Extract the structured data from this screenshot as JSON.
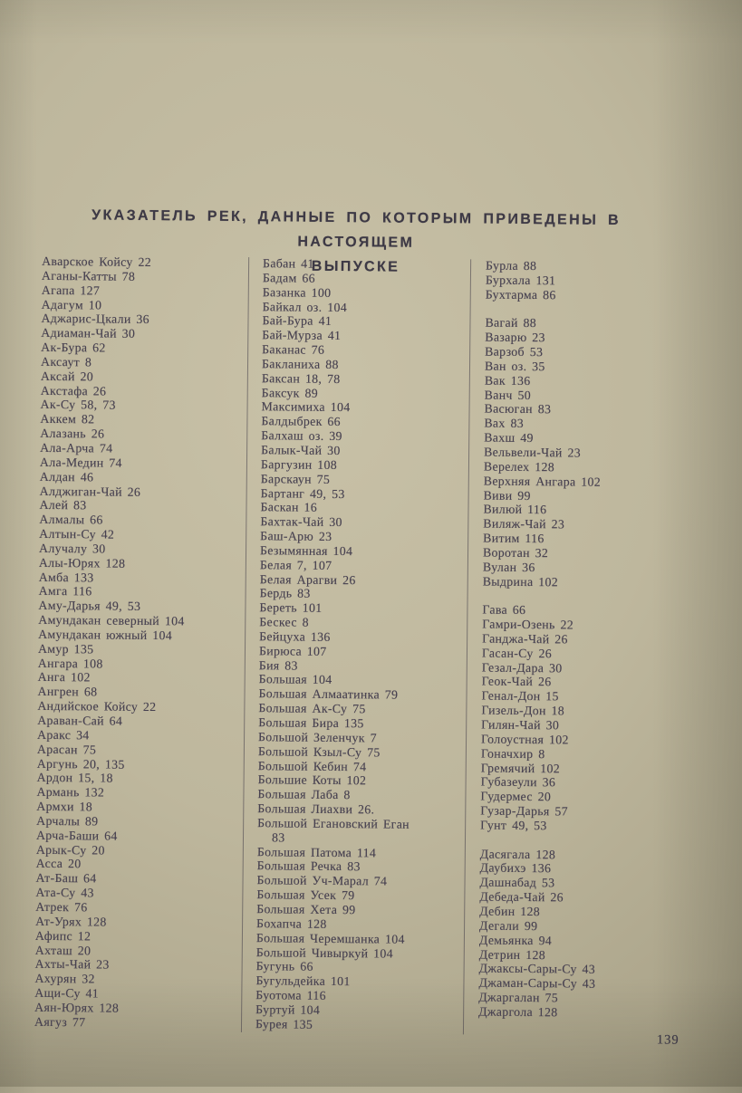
{
  "document": {
    "title_line1": "УКАЗАТЕЛЬ РЕК, ДАННЫЕ ПО КОТОРЫМ ПРИВЕДЕНЫ В НАСТОЯЩЕМ",
    "title_line2": "ВЫПУСКЕ",
    "page_number": "139",
    "ink_color": "#474150",
    "paper_color": "#beb79d"
  },
  "index": {
    "columns": [
      {
        "groups": [
          {
            "entries": [
              "Аварское Койсу 22",
              "Аганы-Катты 78",
              "Агапа 127",
              "Адагум 10",
              "Аджарис-Цкали 36",
              "Адиаман-Чай 30",
              "Ак-Бура 62",
              "Аксаут 8",
              "Аксай 20",
              "Акстафа 26",
              "Ак-Су 58, 73",
              "Аккем 82",
              "Алазань 26",
              "Ала-Арча 74",
              "Ала-Медин 74",
              "Алдан 46",
              "Алджиган-Чай 26",
              "Алей 83",
              "Алмалы 66",
              "Алтын-Су 42",
              "Алучалу 30",
              "Алы-Юрях 128",
              "Амба 133",
              "Амга 116",
              "Аму-Дарья 49, 53",
              "Амундакан северный 104",
              "Амундакан южный 104",
              "Амур 135",
              "Ангара 108",
              "Анга 102",
              "Ангрен 68",
              "Андийское Койсу 22",
              "Араван-Сай 64",
              "Аракс 34",
              "Арасан 75",
              "Аргунь 20, 135",
              "Ардон 15, 18",
              "Армань 132",
              "Армхи 18",
              "Арчалы 89",
              "Арча-Баши 64",
              "Арык-Су 20",
              "Асса 20",
              "Ат-Баш 64",
              "Ата-Су 43",
              "Атрек 76",
              "Ат-Урях 128",
              "Афипс 12",
              "Ахташ 20",
              "Ахты-Чай 23",
              "Ахурян 32",
              "Ащи-Су 41",
              "Аян-Юрях 128",
              "Аягуз 77"
            ]
          }
        ]
      },
      {
        "groups": [
          {
            "entries": [
              "Бабан 41",
              "Бадам 66",
              "Базанка 100",
              "Байкал оз. 104",
              "Бай-Бура 41",
              "Бай-Мурза 41",
              "Баканас 76",
              "Бакланиха 88",
              "Баксан 18, 78",
              "Баксук 89",
              "Максимиха 104",
              "Балдыбрек 66",
              "Балхаш оз. 39",
              "Балык-Чай 30",
              "Баргузин 108",
              "Барскаун 75",
              "Бартанг 49, 53",
              "Баскан 16",
              "Бахтак-Чай 30",
              "Баш-Арю 23",
              "Безымянная 104",
              "Белая 7, 107",
              "Белая Арагви 26",
              "Бердь 83",
              "Береть 101",
              "Бескес 8",
              "Бейцуха 136",
              "Бирюса 107",
              "Бия 83",
              "Большая 104",
              "Большая Алмаатинка 79",
              "Большая Ак-Су 75",
              "Большая Бира 135",
              "Большой Зеленчук 7",
              "Большой Кзыл-Су 75",
              "Большой Кебин 74",
              "Большие Коты 102",
              "Большая Лаба 8",
              "Большая Лиахви 26.",
              "Большой Егановский Еган\n83",
              "Большая Патома 114",
              "Большая Речка 83",
              "Большой Уч-Марал 74",
              "Большая Усек 79",
              "Большая Хета 99",
              "Бохапча 128",
              "Большая Черемшанка 104",
              "Большой Чивыркуй 104",
              "Бугунь 66",
              "Бугульдейка 101",
              "Буотома 116",
              "Буртуй 104",
              "Бурея 135"
            ]
          }
        ]
      },
      {
        "groups": [
          {
            "entries": [
              "Бурла 88",
              "Бурхала 131",
              "Бухтарма 86"
            ]
          },
          {
            "entries": [
              "Вагай 88",
              "Вазарю 23",
              "Варзоб 53",
              "Ван оз. 35",
              "Вак 136",
              "Ванч 50",
              "Васюган 83",
              "Вах 83",
              "Вахш 49",
              "Вельвели-Чай 23",
              "Верелех 128",
              "Верхняя Ангара 102",
              "Виви 99",
              "Вилюй 116",
              "Виляж-Чай 23",
              "Витим 116",
              "Воротан 32",
              "Вулан 36",
              "Выдрина 102"
            ]
          },
          {
            "entries": [
              "Гава 66",
              "Гамри-Озень 22",
              "Ганджа-Чай 26",
              "Гасан-Су 26",
              "Гезал-Дара 30",
              "Геок-Чай 26",
              "Генал-Дон 15",
              "Гизель-Дон 18",
              "Гилян-Чай 30",
              "Голоустная 102",
              "Гоначхир 8",
              "Гремячий 102",
              "Губазеули 36",
              "Гудермес 20",
              "Гузар-Дарья 57",
              "Гунт 49, 53"
            ]
          },
          {
            "entries": [
              "Дасягала 128",
              "Даубихэ 136",
              "Дашнабад 53",
              "Дебеда-Чай 26",
              "Дебин 128",
              "Дегали 99",
              "Демьянка 94",
              "Детрин 128",
              "Джаксы-Сары-Су 43",
              "Джаман-Сары-Су 43",
              "Джаргалан 75",
              "Джаргола 128"
            ]
          }
        ]
      }
    ]
  }
}
